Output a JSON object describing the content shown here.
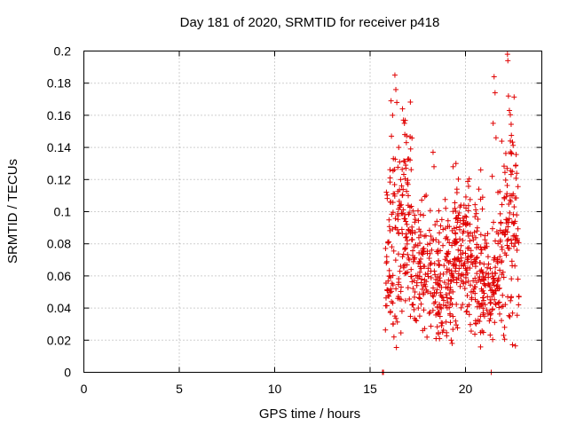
{
  "chart_data": {
    "type": "scatter",
    "title": "Day 181 of 2020, SRMTID for receiver p418",
    "xlabel": "GPS time / hours",
    "ylabel": "SRMTID / TECUs",
    "xlim": [
      0,
      24
    ],
    "ylim": [
      0,
      0.2
    ],
    "x_ticks": [
      0,
      5,
      10,
      15,
      20
    ],
    "x_tick_labels": [
      "0",
      "5",
      "10",
      "15",
      "20"
    ],
    "y_ticks": [
      0,
      0.02,
      0.04,
      0.06,
      0.08,
      0.1,
      0.12,
      0.14,
      0.16,
      0.18,
      0.2
    ],
    "y_tick_labels": [
      "0",
      "0.02",
      "0.04",
      "0.06",
      "0.08",
      "0.1",
      "0.12",
      "0.14",
      "0.16",
      "0.18",
      "0.2"
    ],
    "grid": true,
    "marker": "+",
    "series_color": "#e00000",
    "series": [
      {
        "name": "SRMTID",
        "note": "dense scatter between 15.8 h and 22.8 h, mostly 0.03–0.13 TECU",
        "x_range": [
          15.8,
          22.8
        ],
        "points": [
          [
            15.65,
            0.0
          ],
          [
            15.7,
            0.0
          ],
          [
            21.35,
            0.0
          ],
          [
            16.05,
            0.121
          ],
          [
            16.1,
            0.169
          ],
          [
            16.12,
            0.147
          ],
          [
            16.18,
            0.16
          ],
          [
            16.22,
            0.133
          ],
          [
            16.3,
            0.185
          ],
          [
            16.35,
            0.176
          ],
          [
            16.4,
            0.168
          ],
          [
            16.5,
            0.14
          ],
          [
            16.55,
            0.131
          ],
          [
            16.6,
            0.12
          ],
          [
            16.7,
            0.164
          ],
          [
            16.75,
            0.157
          ],
          [
            16.8,
            0.155
          ],
          [
            16.82,
            0.148
          ],
          [
            16.9,
            0.143
          ],
          [
            16.95,
            0.118
          ],
          [
            17.0,
            0.11
          ],
          [
            16.02,
            0.06
          ],
          [
            16.08,
            0.052
          ],
          [
            16.12,
            0.044
          ],
          [
            16.2,
            0.03
          ],
          [
            16.25,
            0.022
          ],
          [
            16.3,
            0.035
          ],
          [
            16.45,
            0.046
          ],
          [
            16.5,
            0.056
          ],
          [
            16.6,
            0.066
          ],
          [
            16.7,
            0.072
          ],
          [
            16.85,
            0.077
          ],
          [
            16.95,
            0.082
          ],
          [
            17.05,
            0.07
          ],
          [
            17.15,
            0.064
          ],
          [
            17.2,
            0.042
          ],
          [
            17.3,
            0.039
          ],
          [
            17.35,
            0.05
          ],
          [
            17.45,
            0.054
          ],
          [
            17.5,
            0.06
          ],
          [
            17.6,
            0.035
          ],
          [
            17.7,
            0.058
          ],
          [
            17.8,
            0.066
          ],
          [
            17.9,
            0.061
          ],
          [
            18.0,
            0.074
          ],
          [
            18.1,
            0.071
          ],
          [
            18.2,
            0.068
          ],
          [
            18.3,
            0.137
          ],
          [
            18.35,
            0.128
          ],
          [
            18.5,
            0.094
          ],
          [
            18.6,
            0.081
          ],
          [
            18.7,
            0.048
          ],
          [
            18.75,
            0.029
          ],
          [
            18.8,
            0.025
          ],
          [
            18.9,
            0.056
          ],
          [
            19.0,
            0.072
          ],
          [
            19.1,
            0.055
          ],
          [
            19.2,
            0.046
          ],
          [
            19.25,
            0.02
          ],
          [
            19.3,
            0.018
          ],
          [
            19.35,
            0.128
          ],
          [
            19.5,
            0.13
          ],
          [
            19.55,
            0.114
          ],
          [
            19.6,
            0.096
          ],
          [
            19.7,
            0.083
          ],
          [
            19.8,
            0.061
          ],
          [
            19.9,
            0.067
          ],
          [
            20.0,
            0.074
          ],
          [
            20.1,
            0.041
          ],
          [
            20.2,
            0.036
          ],
          [
            20.3,
            0.05
          ],
          [
            20.4,
            0.057
          ],
          [
            20.5,
            0.069
          ],
          [
            20.6,
            0.088
          ],
          [
            20.7,
            0.114
          ],
          [
            20.8,
            0.126
          ],
          [
            20.9,
            0.109
          ],
          [
            21.0,
            0.078
          ],
          [
            21.05,
            0.054
          ],
          [
            21.15,
            0.047
          ],
          [
            21.25,
            0.032
          ],
          [
            21.3,
            0.043
          ],
          [
            21.4,
            0.122
          ],
          [
            21.45,
            0.155
          ],
          [
            21.5,
            0.184
          ],
          [
            21.55,
            0.174
          ],
          [
            21.6,
            0.146
          ],
          [
            21.7,
            0.112
          ],
          [
            21.8,
            0.072
          ],
          [
            21.9,
            0.061
          ],
          [
            22.0,
            0.023
          ],
          [
            22.05,
            0.028
          ],
          [
            22.1,
            0.088
          ],
          [
            22.15,
            0.093
          ],
          [
            22.2,
            0.198
          ],
          [
            22.22,
            0.194
          ],
          [
            22.25,
            0.172
          ],
          [
            22.3,
            0.163
          ],
          [
            22.35,
            0.144
          ],
          [
            22.4,
            0.136
          ],
          [
            22.45,
            0.125
          ],
          [
            22.5,
            0.111
          ],
          [
            22.55,
            0.103
          ],
          [
            22.6,
            0.094
          ],
          [
            22.65,
            0.085
          ],
          [
            22.7,
            0.076
          ],
          [
            22.75,
            0.058
          ],
          [
            22.8,
            0.047
          ],
          [
            22.78,
            0.042
          ]
        ]
      }
    ]
  }
}
